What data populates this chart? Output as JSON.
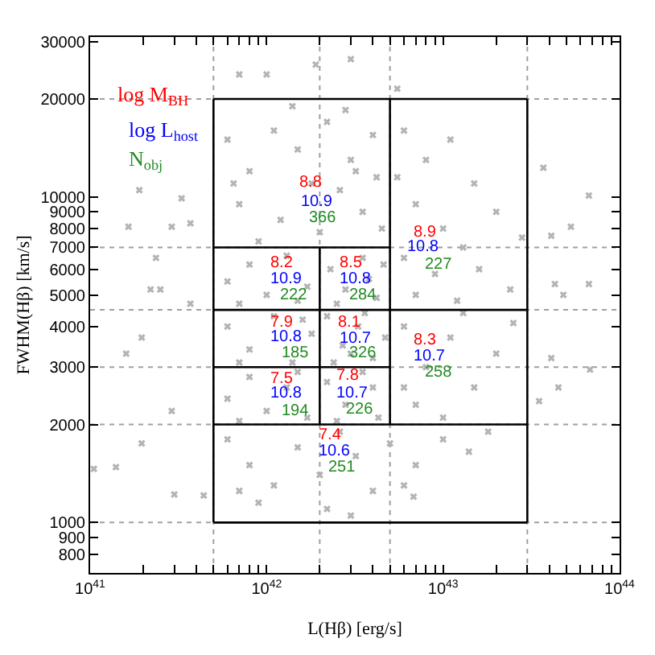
{
  "chart_data": {
    "type": "scatter",
    "xlabel": "L(Hβ) [erg/s]",
    "ylabel": "FWHM(Hβ) [km/s]",
    "log": "xy",
    "marker": "cross",
    "xlim": [
      1e+41,
      1e+44
    ],
    "ylim": [
      700,
      31000
    ],
    "xticks": [
      {
        "value": 1e+41,
        "label": "10$^{41}$"
      },
      {
        "value": 2e+41,
        "label": null
      },
      {
        "value": 3e+41,
        "label": null
      },
      {
        "value": 4e+41,
        "label": null
      },
      {
        "value": 5e+41,
        "label": null
      },
      {
        "value": 6e+41,
        "label": null
      },
      {
        "value": 7e+41,
        "label": null
      },
      {
        "value": 8e+41,
        "label": null
      },
      {
        "value": 9e+41,
        "label": null
      },
      {
        "value": 1e+42,
        "label": "10$^{42}$"
      },
      {
        "value": 2e+42,
        "label": null
      },
      {
        "value": 3e+42,
        "label": null
      },
      {
        "value": 4e+42,
        "label": null
      },
      {
        "value": 5e+42,
        "label": null
      },
      {
        "value": 6e+42,
        "label": null
      },
      {
        "value": 7e+42,
        "label": null
      },
      {
        "value": 8e+42,
        "label": null
      },
      {
        "value": 9e+42,
        "label": null
      },
      {
        "value": 1e+43,
        "label": "10$^{43}$"
      },
      {
        "value": 2e+43,
        "label": null
      },
      {
        "value": 3e+43,
        "label": null
      },
      {
        "value": 4e+43,
        "label": null
      },
      {
        "value": 5e+43,
        "label": null
      },
      {
        "value": 6e+43,
        "label": null
      },
      {
        "value": 7e+43,
        "label": null
      },
      {
        "value": 8e+43,
        "label": null
      },
      {
        "value": 9e+43,
        "label": null
      },
      {
        "value": 1e+44,
        "label": "10$^{44}$"
      }
    ],
    "yticks": [
      800,
      900,
      1000,
      2000,
      3000,
      4000,
      5000,
      6000,
      7000,
      8000,
      9000,
      10000,
      20000,
      30000
    ],
    "ref_lines": [
      {
        "axis": "x",
        "value": 5e+41,
        "color": "#a0a0a0",
        "line_style": "dotted"
      },
      {
        "axis": "x",
        "value": 2e+42,
        "color": "#a0a0a0",
        "line_style": "dotted"
      },
      {
        "axis": "x",
        "value": 5e+42,
        "color": "#a0a0a0",
        "line_style": "dotted"
      },
      {
        "axis": "x",
        "value": 3e+43,
        "color": "#a0a0a0",
        "line_style": "dotted"
      },
      {
        "axis": "y",
        "value": 1000,
        "color": "#a0a0a0",
        "line_style": "dotted"
      },
      {
        "axis": "y",
        "value": 2000,
        "color": "#a0a0a0",
        "line_style": "dotted"
      },
      {
        "axis": "y",
        "value": 3000,
        "color": "#a0a0a0",
        "line_style": "dotted"
      },
      {
        "axis": "y",
        "value": 4500,
        "color": "#a0a0a0",
        "line_style": "dotted"
      },
      {
        "axis": "y",
        "value": 7000,
        "color": "#a0a0a0",
        "line_style": "dotted"
      },
      {
        "axis": "y",
        "value": 20000,
        "color": "#a0a0a0",
        "line_style": "dotted"
      }
    ],
    "series": [
      {
        "color": "#b4b4b4",
        "x": [
          6e+41,
          8e+41,
          1.1e+42,
          1.5e+42,
          2.2e+42,
          3e+42,
          4e+42,
          1.8e+42,
          2.6e+42,
          3.5e+42,
          1.2e+42,
          7e+41,
          4.5e+42,
          2e+42,
          9e+41,
          3.2e+42,
          1.4e+42,
          2.8e+42,
          6.5e+41,
          4.2e+42,
          6e+42,
          8e+42,
          1.1e+43,
          1.5e+43,
          2e+43,
          7e+42,
          1e+43,
          1.3e+43,
          6e+42,
          9e+42,
          1.6e+43,
          2.4e+43,
          7e+42,
          1.2e+43,
          2.8e+43,
          5.5e+42,
          6e+41,
          8e+41,
          1e+42,
          1.3e+42,
          1.7e+42,
          7e+41,
          1.5e+42,
          2.3e+42,
          2.8e+42,
          3.5e+42,
          4.2e+42,
          2.5e+42,
          3.8e+42,
          4.6e+42,
          6e+41,
          8e+41,
          1.1e+42,
          1.4e+42,
          1.8e+42,
          7e+41,
          1.6e+42,
          2.2e+42,
          2.7e+42,
          3.3e+42,
          4e+42,
          4.7e+42,
          2.4e+42,
          3.6e+42,
          3e+42,
          6e+42,
          8e+42,
          1.1e+43,
          1.5e+43,
          2e+43,
          7e+42,
          1e+43,
          2.5e+43,
          1.3e+43,
          6e+42,
          6e+41,
          8e+41,
          1e+42,
          1.3e+42,
          1.7e+42,
          7e+41,
          1.5e+42,
          2.2e+42,
          2.8e+42,
          3.5e+42,
          4.3e+42,
          2.5e+42,
          4e+42,
          6e+41,
          8e+41,
          1.1e+42,
          1.5e+42,
          2e+42,
          2.6e+42,
          3.2e+42,
          4e+42,
          5e+42,
          7e+42,
          1e+43,
          1.4e+43,
          9e+41,
          2.2e+42,
          6e+42,
          1.8e+43,
          3e+42,
          7e+41,
          3e+42,
          1.9e+42,
          5.5e+42,
          7e+41,
          1e+42,
          1.9e+41,
          1.65e+41,
          2.9e+41,
          3.3e+41,
          3.7e+41,
          2.36e+41,
          2.2e+41,
          2.5e+41,
          3.7e+41,
          3.7e+43,
          6.7e+43,
          5.3e+43,
          4.1e+43,
          4.8e+43,
          6.7e+43,
          4.3e+43,
          4.1e+43,
          4.5e+43,
          6.8e+43,
          3.5e+43,
          1.6e+41,
          1.96e+41,
          2.9e+41,
          1.96e+41,
          3e+41,
          4.4e+41,
          1.4e+41,
          1.05e+41,
          6.8e+42
        ],
        "values": [
          15000,
          12000,
          16000,
          14000,
          17000,
          13000,
          15500,
          11000,
          10500,
          9000,
          8500,
          9500,
          8000,
          7800,
          7300,
          12000,
          19000,
          18500,
          11000,
          11500,
          16000,
          13000,
          15000,
          11000,
          9000,
          9500,
          8000,
          7000,
          6500,
          5800,
          6000,
          5200,
          5000,
          4800,
          7500,
          11500,
          5500,
          6200,
          5000,
          6600,
          5300,
          4700,
          4800,
          6000,
          5200,
          6500,
          4900,
          4700,
          5600,
          6200,
          4000,
          3400,
          4300,
          3100,
          3800,
          3100,
          4200,
          4300,
          3500,
          4000,
          3200,
          3700,
          3100,
          4400,
          3300,
          4000,
          3000,
          3700,
          2600,
          3300,
          2300,
          2100,
          4100,
          4400,
          2600,
          2400,
          2800,
          2200,
          2600,
          2100,
          2050,
          2900,
          2700,
          2300,
          2900,
          2100,
          2050,
          2600,
          1800,
          1500,
          1300,
          1700,
          1400,
          1900,
          1600,
          1250,
          1750,
          1500,
          1800,
          1650,
          1150,
          1100,
          1300,
          1900,
          1050,
          1250,
          26500,
          25500,
          21500,
          23800,
          23800,
          10500,
          8100,
          8100,
          9900,
          8300,
          6500,
          5200,
          5200,
          4700,
          12300,
          10100,
          8100,
          7600,
          5000,
          5400,
          5400,
          3200,
          2600,
          2950,
          2360,
          3300,
          3700,
          2200,
          1750,
          1220,
          1210,
          1480,
          1460,
          1200
        ]
      },
      {
        "type": "line",
        "marker": "none",
        "color": "#000000",
        "x": [
          5e+41,
          3e+43
        ],
        "values": [
          1000,
          1000
        ]
      },
      {
        "type": "line",
        "marker": "none",
        "color": "#000000",
        "x": [
          5e+41,
          3e+43
        ],
        "values": [
          20000,
          20000
        ]
      },
      {
        "type": "line",
        "marker": "none",
        "color": "#000000",
        "x": [
          5e+41,
          5e+41
        ],
        "values": [
          1000,
          20000
        ]
      },
      {
        "type": "line",
        "marker": "none",
        "color": "#000000",
        "x": [
          3e+43,
          3e+43
        ],
        "values": [
          1000,
          20000
        ]
      },
      {
        "type": "line",
        "marker": "none",
        "color": "#000000",
        "x": [
          5e+42,
          5e+42
        ],
        "values": [
          2000,
          20000
        ]
      },
      {
        "type": "line",
        "marker": "none",
        "color": "#000000",
        "x": [
          2e+42,
          2e+42
        ],
        "values": [
          2000,
          7000
        ]
      },
      {
        "type": "line",
        "marker": "none",
        "color": "#000000",
        "x": [
          5e+41,
          5e+42
        ],
        "values": [
          7000,
          7000
        ]
      },
      {
        "type": "line",
        "marker": "none",
        "color": "#000000",
        "x": [
          5e+41,
          3e+43
        ],
        "values": [
          4500,
          4500
        ]
      },
      {
        "type": "line",
        "marker": "none",
        "color": "#000000",
        "x": [
          5e+41,
          5e+42
        ],
        "values": [
          3000,
          3000
        ]
      },
      {
        "type": "line",
        "marker": "none",
        "color": "#000000",
        "x": [
          5e+41,
          3e+43
        ],
        "values": [
          2000,
          2000
        ]
      }
    ],
    "annotations": [
      "log M$_{BH}$",
      "log L$_{host}$",
      "N$_{obj}$",
      "8.8",
      "10.9",
      "366",
      "8.9",
      "10.8",
      "227",
      "8.2",
      "10.9",
      "222",
      "8.5",
      "10.8",
      "284",
      "7.9",
      "10.8",
      "185",
      "8.1",
      "10.7",
      "326",
      "8.3",
      "10.7",
      "258",
      "7.5",
      "10.8",
      "194",
      "7.8",
      "10.7",
      "226",
      "7.4",
      "10.6",
      "251"
    ]
  }
}
